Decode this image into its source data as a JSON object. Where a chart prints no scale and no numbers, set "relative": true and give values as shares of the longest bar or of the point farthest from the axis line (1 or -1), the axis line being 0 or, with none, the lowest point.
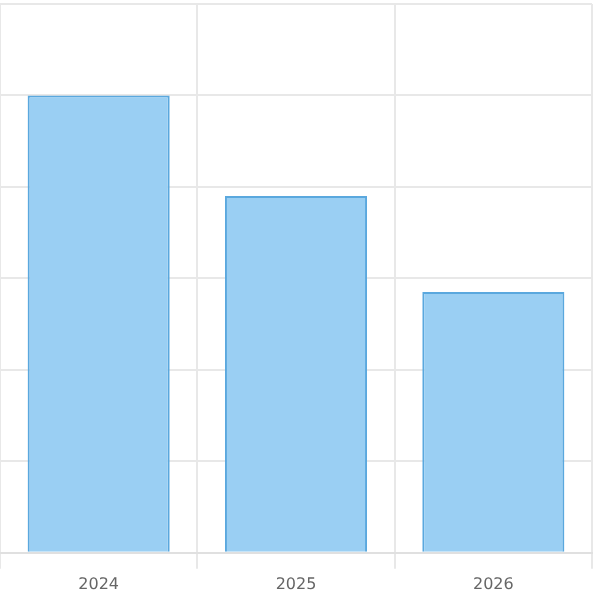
{
  "chart_data": {
    "type": "bar",
    "relative": true,
    "categories": [
      "2024",
      "2025",
      "2026"
    ],
    "series": [
      {
        "color": "#9acff3",
        "values": [
          1,
          0.78,
          0.57
        ]
      }
    ],
    "grid": true
  }
}
